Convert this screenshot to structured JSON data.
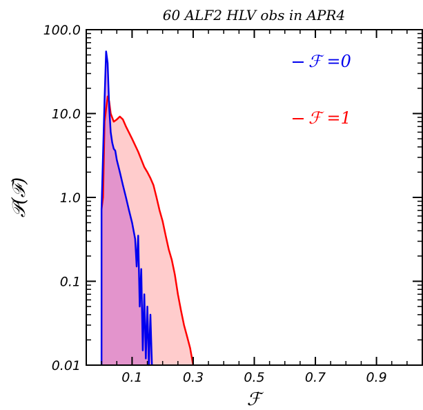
{
  "chart_data": {
    "type": "area",
    "title": "60 ALF2 HLV obs in APR4",
    "xlabel": "ℱ",
    "ylabel": "𝒫(ℱ)",
    "xlim": [
      -0.05,
      1.05
    ],
    "ylim": [
      0.01,
      100
    ],
    "yscale": "log",
    "xticks": [
      {
        "value": 0.1,
        "label": "0.1"
      },
      {
        "value": 0.3,
        "label": "0.3"
      },
      {
        "value": 0.5,
        "label": "0.5"
      },
      {
        "value": 0.7,
        "label": "0.7"
      },
      {
        "value": 0.9,
        "label": "0.9"
      }
    ],
    "yticks": [
      {
        "value": 100,
        "label": "100.0"
      },
      {
        "value": 10,
        "label": "10.0"
      },
      {
        "value": 1,
        "label": "1.0"
      },
      {
        "value": 0.1,
        "label": "0.1"
      },
      {
        "value": 0.01,
        "label": "0.01"
      }
    ],
    "legend_position": "top-right",
    "series": [
      {
        "name": "ℱ =0",
        "color": "#0000ee",
        "fill": "#cc66cc",
        "points": [
          [
            0.0,
            0.005
          ],
          [
            0.0,
            0.72
          ],
          [
            0.01,
            15
          ],
          [
            0.015,
            55
          ],
          [
            0.02,
            40
          ],
          [
            0.025,
            12
          ],
          [
            0.03,
            6
          ],
          [
            0.035,
            4.5
          ],
          [
            0.04,
            3.8
          ],
          [
            0.045,
            3.6
          ],
          [
            0.05,
            2.8
          ],
          [
            0.06,
            2.0
          ],
          [
            0.07,
            1.4
          ],
          [
            0.08,
            1.0
          ],
          [
            0.09,
            0.7
          ],
          [
            0.1,
            0.5
          ],
          [
            0.11,
            0.32
          ],
          [
            0.115,
            0.15
          ],
          [
            0.12,
            0.35
          ],
          [
            0.125,
            0.05
          ],
          [
            0.13,
            0.14
          ],
          [
            0.135,
            0.015
          ],
          [
            0.14,
            0.07
          ],
          [
            0.145,
            0.012
          ],
          [
            0.15,
            0.05
          ],
          [
            0.155,
            0.01
          ],
          [
            0.16,
            0.04
          ],
          [
            0.165,
            0.01
          ]
        ]
      },
      {
        "name": "ℱ =1",
        "color": "#ff0000",
        "fill": "#ffb6b6",
        "points": [
          [
            0.0,
            0.72
          ],
          [
            0.005,
            1.0
          ],
          [
            0.01,
            8
          ],
          [
            0.02,
            16
          ],
          [
            0.025,
            14
          ],
          [
            0.03,
            10
          ],
          [
            0.04,
            8
          ],
          [
            0.05,
            8.5
          ],
          [
            0.06,
            9.2
          ],
          [
            0.07,
            8.5
          ],
          [
            0.08,
            7.0
          ],
          [
            0.1,
            5.0
          ],
          [
            0.12,
            3.5
          ],
          [
            0.14,
            2.3
          ],
          [
            0.15,
            2.0
          ],
          [
            0.16,
            1.7
          ],
          [
            0.17,
            1.4
          ],
          [
            0.18,
            1.0
          ],
          [
            0.19,
            0.7
          ],
          [
            0.2,
            0.52
          ],
          [
            0.21,
            0.35
          ],
          [
            0.22,
            0.24
          ],
          [
            0.23,
            0.18
          ],
          [
            0.24,
            0.12
          ],
          [
            0.25,
            0.07
          ],
          [
            0.26,
            0.045
          ],
          [
            0.27,
            0.03
          ],
          [
            0.28,
            0.022
          ],
          [
            0.29,
            0.016
          ],
          [
            0.3,
            0.01
          ]
        ]
      }
    ]
  }
}
